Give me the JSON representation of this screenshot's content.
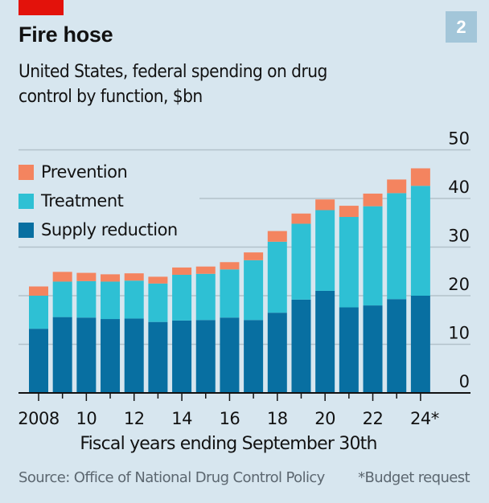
{
  "header": {
    "title": "Fire hose",
    "subtitle": "United States, federal spending on drug control by function, $bn",
    "badge": "2"
  },
  "colors": {
    "prevention": "#f4845f",
    "treatment": "#2ec0d4",
    "supply_reduction": "#086fa1",
    "accent": "#e3120b",
    "gridline": "#b3c2ca",
    "badge": "#a3c6d9"
  },
  "legend": [
    {
      "label": "Prevention",
      "key": "prevention"
    },
    {
      "label": "Treatment",
      "key": "treatment"
    },
    {
      "label": "Supply reduction",
      "key": "supply_reduction"
    }
  ],
  "footer": {
    "source": "Source: Office of National Drug Control Policy",
    "note": "*Budget request"
  },
  "chart_data": {
    "type": "bar",
    "stacked": true,
    "title": "Fire hose",
    "subtitle": "United States, federal spending on drug control by function, $bn",
    "xlabel": "Fiscal years ending September 30th",
    "ylabel": "",
    "ylim": [
      0,
      50
    ],
    "yticks": [
      0,
      10,
      20,
      30,
      40,
      50
    ],
    "grid": true,
    "legend_position": "top-left",
    "y_axis_side": "right",
    "categories": [
      "2008",
      "2009",
      "2010",
      "2011",
      "2012",
      "2013",
      "2014",
      "2015",
      "2016",
      "2017",
      "2018",
      "2019",
      "2020",
      "2021",
      "2022",
      "2023",
      "2024*"
    ],
    "xtick_labels": [
      "2008",
      "10",
      "12",
      "14",
      "16",
      "18",
      "20",
      "22",
      "24*"
    ],
    "xtick_label_indices": [
      0,
      2,
      4,
      6,
      8,
      10,
      12,
      14,
      16
    ],
    "series": [
      {
        "name": "Supply reduction",
        "key": "supply_reduction",
        "values": [
          13.2,
          15.6,
          15.5,
          15.2,
          15.3,
          14.6,
          14.9,
          15.0,
          15.5,
          15.0,
          16.5,
          19.2,
          21.0,
          17.6,
          18.0,
          19.3,
          20.0
        ]
      },
      {
        "name": "Treatment",
        "key": "treatment",
        "values": [
          6.8,
          7.3,
          7.5,
          7.7,
          7.8,
          7.9,
          9.4,
          9.5,
          9.9,
          12.3,
          14.6,
          15.6,
          16.6,
          18.6,
          20.4,
          21.8,
          22.6
        ]
      },
      {
        "name": "Prevention",
        "key": "prevention",
        "values": [
          1.9,
          2.0,
          1.7,
          1.5,
          1.5,
          1.4,
          1.5,
          1.5,
          1.5,
          1.6,
          2.2,
          2.1,
          2.2,
          2.3,
          2.6,
          2.8,
          3.6
        ]
      }
    ],
    "annotations": [
      "*Budget request"
    ],
    "source": "Source: Office of National Drug Control Policy"
  }
}
